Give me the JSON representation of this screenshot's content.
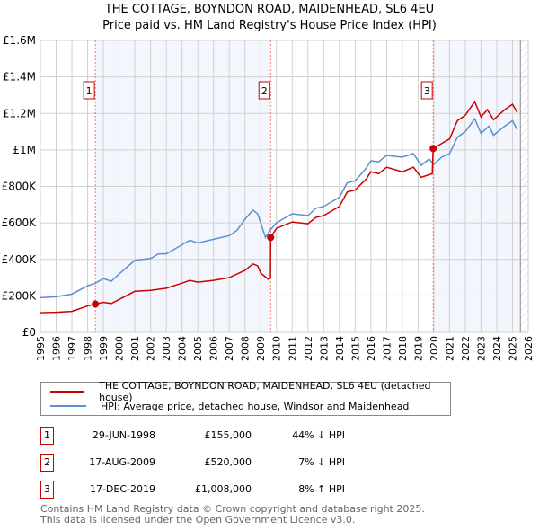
{
  "chart_data": {
    "type": "line",
    "title": "THE COTTAGE, BOYNDON ROAD, MAIDENHEAD, SL6 4EU",
    "subtitle": "Price paid vs. HM Land Registry's House Price Index (HPI)",
    "xlim": [
      1995,
      2026
    ],
    "ylim": [
      0,
      1600000
    ],
    "y_ticks": [
      {
        "v": 0,
        "l": "£0"
      },
      {
        "v": 200000,
        "l": "£200K"
      },
      {
        "v": 400000,
        "l": "£400K"
      },
      {
        "v": 600000,
        "l": "£600K"
      },
      {
        "v": 800000,
        "l": "£800K"
      },
      {
        "v": 1000000,
        "l": "£1M"
      },
      {
        "v": 1200000,
        "l": "£1.2M"
      },
      {
        "v": 1400000,
        "l": "£1.4M"
      },
      {
        "v": 1600000,
        "l": "£1.6M"
      }
    ],
    "x_ticks": [
      "1995",
      "1996",
      "1997",
      "1998",
      "1999",
      "2000",
      "2001",
      "2002",
      "2003",
      "2004",
      "2005",
      "2006",
      "2007",
      "2008",
      "2009",
      "2010",
      "2011",
      "2012",
      "2013",
      "2014",
      "2015",
      "2016",
      "2017",
      "2018",
      "2019",
      "2020",
      "2021",
      "2022",
      "2023",
      "2024",
      "2025",
      "2026"
    ],
    "grid": true,
    "shaded_ranges": [
      [
        1998.49,
        2009.63
      ],
      [
        2019.96,
        2025.5
      ]
    ],
    "forecast_start": 2025.5,
    "series": [
      {
        "name": "THE COTTAGE, BOYNDON ROAD, MAIDENHEAD, SL6 4EU (detached house)",
        "color": "#cc0000",
        "x": [
          1995,
          1996,
          1997,
          1998,
          1998.49,
          1999,
          1999.5,
          2000,
          2001,
          2002,
          2003,
          2004,
          2004.5,
          2005,
          2006,
          2007,
          2008,
          2008.5,
          2008.8,
          2009,
          2009.5,
          2009.62,
          2009.63,
          2010,
          2011,
          2012,
          2012.5,
          2013,
          2014,
          2014.5,
          2015,
          2015.7,
          2016,
          2016.5,
          2017,
          2018,
          2018.7,
          2019.2,
          2019.9,
          2019.96,
          2020.5,
          2021,
          2021.5,
          2022,
          2022.6,
          2023,
          2023.4,
          2023.8,
          2024.5,
          2025,
          2025.3
        ],
        "y": [
          108000,
          110000,
          115000,
          145000,
          155000,
          165000,
          158000,
          180000,
          225000,
          230000,
          242000,
          270000,
          285000,
          275000,
          285000,
          300000,
          340000,
          375000,
          365000,
          325000,
          290000,
          300000,
          520000,
          570000,
          605000,
          595000,
          630000,
          640000,
          690000,
          770000,
          780000,
          840000,
          880000,
          870000,
          905000,
          880000,
          905000,
          850000,
          870000,
          1008000,
          1035000,
          1060000,
          1160000,
          1190000,
          1265000,
          1180000,
          1220000,
          1165000,
          1220000,
          1250000,
          1205000
        ]
      },
      {
        "name": "HPI: Average price, detached house, Windsor and Maidenhead",
        "color": "#5b8fd0",
        "x": [
          1995,
          1996,
          1997,
          1998,
          1998.5,
          1999,
          1999.5,
          2000,
          2001,
          2002,
          2002.5,
          2003,
          2004,
          2004.5,
          2005,
          2006,
          2007,
          2007.5,
          2008,
          2008.5,
          2008.8,
          2009,
          2009.3,
          2009.6,
          2010,
          2011,
          2012,
          2012.5,
          2013,
          2014,
          2014.5,
          2015,
          2015.7,
          2016,
          2016.5,
          2017,
          2018,
          2018.7,
          2019.2,
          2019.7,
          2020,
          2020.5,
          2021,
          2021.5,
          2022,
          2022.6,
          2023,
          2023.5,
          2023.8,
          2024.5,
          2025,
          2025.3
        ],
        "y": [
          190000,
          195000,
          210000,
          255000,
          270000,
          295000,
          280000,
          320000,
          395000,
          405000,
          430000,
          430000,
          480000,
          505000,
          490000,
          510000,
          530000,
          560000,
          620000,
          670000,
          650000,
          600000,
          520000,
          560000,
          600000,
          650000,
          640000,
          680000,
          690000,
          740000,
          820000,
          830000,
          900000,
          940000,
          935000,
          970000,
          960000,
          980000,
          915000,
          950000,
          920000,
          960000,
          980000,
          1070000,
          1100000,
          1170000,
          1090000,
          1130000,
          1080000,
          1130000,
          1160000,
          1110000
        ]
      }
    ],
    "sales": [
      {
        "n": "1",
        "x": 1998.49,
        "y": 155000,
        "date": "29-JUN-1998",
        "price": "£155,000",
        "hpi": "44% ↓ HPI"
      },
      {
        "n": "2",
        "x": 2009.63,
        "y": 520000,
        "date": "17-AUG-2009",
        "price": "£520,000",
        "hpi": "7% ↓ HPI"
      },
      {
        "n": "3",
        "x": 2019.96,
        "y": 1008000,
        "date": "17-DEC-2019",
        "price": "£1,008,000",
        "hpi": "8% ↑ HPI"
      }
    ]
  },
  "footer": {
    "line1": "Contains HM Land Registry data © Crown copyright and database right 2025.",
    "line2": "This data is licensed under the Open Government Licence v3.0."
  }
}
